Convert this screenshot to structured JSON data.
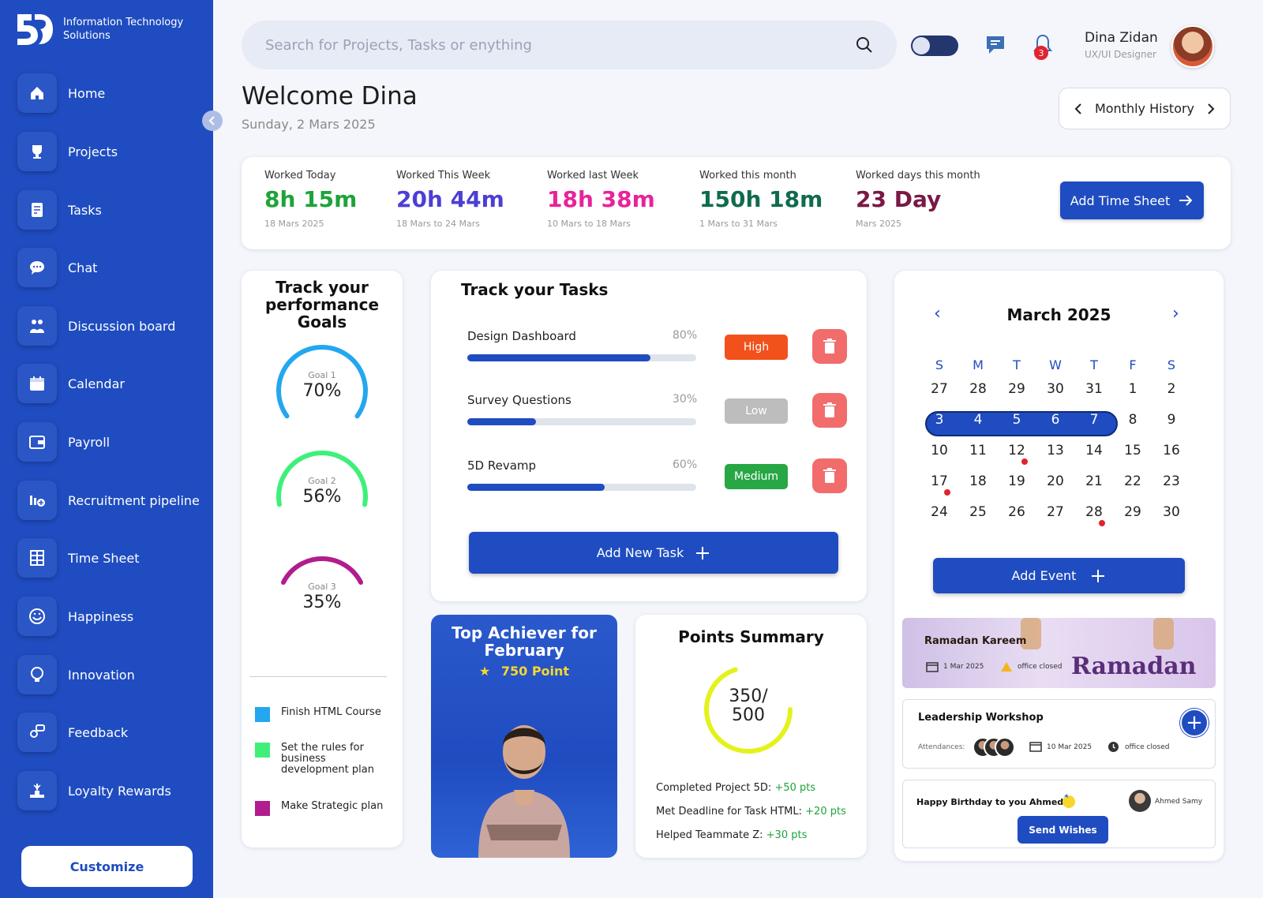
{
  "brand": {
    "line1": "Information Technology",
    "line2": "Solutions"
  },
  "sidebar": {
    "items": [
      {
        "label": "Home",
        "icon": "home-icon"
      },
      {
        "label": "Projects",
        "icon": "trophy-icon"
      },
      {
        "label": "Tasks",
        "icon": "checklist-icon"
      },
      {
        "label": "Chat",
        "icon": "chat-bubble-icon"
      },
      {
        "label": "Discussion board",
        "icon": "people-group-icon"
      },
      {
        "label": "Calendar",
        "icon": "calendar-icon"
      },
      {
        "label": "Payroll",
        "icon": "wallet-icon"
      },
      {
        "label": "Recruitment pipeline",
        "icon": "recruitment-icon"
      },
      {
        "label": "Time Sheet",
        "icon": "timesheet-icon"
      },
      {
        "label": "Happiness",
        "icon": "smiley-icon"
      },
      {
        "label": "Innovation",
        "icon": "lightbulb-icon"
      },
      {
        "label": "Feedback",
        "icon": "feedback-icon"
      },
      {
        "label": "Loyalty Rewards",
        "icon": "podium-icon"
      }
    ],
    "customize_label": "Customize"
  },
  "header": {
    "search_placeholder": "Search for Projects, Tasks or enything",
    "notification_count": "3",
    "user_name": "Dina Zidan",
    "user_role": "UX/UI Designer"
  },
  "welcome": {
    "title": "Welcome Dina",
    "date": "Sunday, 2 Mars 2025"
  },
  "monthly_history_label": "Monthly History",
  "stats": {
    "items": [
      {
        "label": "Worked Today",
        "value": "8h 15m",
        "sub": "18 Mars 2025",
        "color": "#1ea33a"
      },
      {
        "label": "Worked This Week",
        "value": "20h 44m",
        "sub": "18 Mars to 24 Mars",
        "color": "#4b3fd6"
      },
      {
        "label": "Worked last Week",
        "value": "18h 38m",
        "sub": "10 Mars to 18 Mars",
        "color": "#e8239a"
      },
      {
        "label": "Worked this month",
        "value": "150h 18m",
        "sub": "1 Mars to 31 Mars",
        "color": "#0f6b4e"
      },
      {
        "label": "Worked days this month",
        "value": "23 Day",
        "sub": "Mars 2025",
        "color": "#7a1846"
      }
    ],
    "add_label": "Add Time Sheet"
  },
  "goals": {
    "title_l1": "Track your",
    "title_l2": "performance",
    "title_l3": "Goals",
    "gauges": [
      {
        "label": "Goal 1",
        "value": "70%",
        "progress": 0.7,
        "color": "#23a7ef"
      },
      {
        "label": "Goal 2",
        "value": "56%",
        "progress": 0.56,
        "color": "#3ef07a"
      },
      {
        "label": "Goal 3",
        "value": "35%",
        "progress": 0.35,
        "color": "#b11c8e"
      }
    ],
    "legend": [
      {
        "text": "Finish HTML Course",
        "color": "#23a7ef"
      },
      {
        "text": "Set the rules for business development plan",
        "color": "#3ef07a"
      },
      {
        "text": "Make Strategic plan",
        "color": "#b11c8e"
      }
    ]
  },
  "tasks": {
    "title": "Track your Tasks",
    "items": [
      {
        "name": "Design Dashboard",
        "pct": "80%",
        "progress": 0.8,
        "priority": "High",
        "priority_color": "#f3511c"
      },
      {
        "name": "Survey Questions",
        "pct": "30%",
        "progress": 0.3,
        "priority": "Low",
        "priority_color": "#bdbdbd"
      },
      {
        "name": "5D Revamp",
        "pct": "60%",
        "progress": 0.6,
        "priority": "Medium",
        "priority_color": "#28a745"
      }
    ],
    "add_label": "Add New Task"
  },
  "calendar": {
    "title": "March 2025",
    "dow": [
      "S",
      "M",
      "T",
      "W",
      "T",
      "F",
      "S"
    ],
    "weeks": [
      [
        "27",
        "28",
        "29",
        "30",
        "31",
        "1",
        "2"
      ],
      [
        "3",
        "4",
        "5",
        "6",
        "7",
        "8",
        "9"
      ],
      [
        "10",
        "11",
        "12",
        "13",
        "14",
        "15",
        "16"
      ],
      [
        "17",
        "18",
        "19",
        "20",
        "21",
        "22",
        "23"
      ],
      [
        "24",
        "25",
        "26",
        "27",
        "28",
        "29",
        "30"
      ]
    ],
    "add_label": "Add Event"
  },
  "events": {
    "ramadan": {
      "title": "Ramadan Kareem",
      "date": "1 Mar 2025",
      "status": "office closed",
      "word": "Ramadan"
    },
    "workshop": {
      "title": "Leadership Workshop",
      "attendances_label": "Attendances:",
      "date": "10 Mar 2025",
      "status": "office closed"
    },
    "birthday": {
      "text": "Happy Birthday to you Ahmed!",
      "name": "Ahmed Samy",
      "button": "Send Wishes"
    }
  },
  "achiever": {
    "title_l1": "Top Achiever for",
    "title_l2": "February",
    "points": "750 Point"
  },
  "points": {
    "title": "Points Summary",
    "value_l1": "350/",
    "value_l2": "500",
    "progress": 0.7,
    "lines": [
      {
        "text": "Completed Project 5D: ",
        "pts": "+50 pts"
      },
      {
        "text": "Met Deadline for Task HTML: ",
        "pts": "+20 pts"
      },
      {
        "text": "Helped Teammate Z: ",
        "pts": "+30 pts"
      }
    ]
  }
}
